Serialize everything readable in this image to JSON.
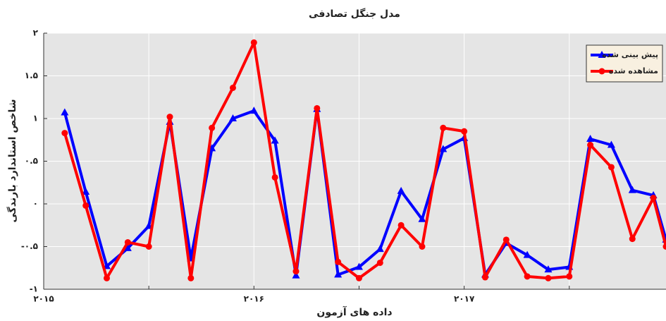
{
  "chart_data": {
    "type": "line",
    "title": "مدل جنگل تصادفی",
    "xlabel": "داده های آزمون",
    "ylabel": "شاخص استاندارد بارندگی",
    "x": [
      2015.1,
      2015.2,
      2015.3,
      2015.4,
      2015.5,
      2015.6,
      2015.7,
      2015.8,
      2015.9,
      2016.0,
      2016.1,
      2016.2,
      2016.3,
      2016.4,
      2016.5,
      2016.6,
      2016.7,
      2016.8,
      2016.9,
      2017.0,
      2017.1,
      2017.2,
      2017.3,
      2017.4,
      2017.5,
      2017.6,
      2017.7,
      2017.8,
      2017.9,
      2017.96
    ],
    "series": [
      {
        "name": "پیش بینی شده",
        "color": "#0000ff",
        "marker": "triangle",
        "values": [
          1.07,
          0.14,
          -0.73,
          -0.52,
          -0.26,
          0.96,
          -0.64,
          0.65,
          1.0,
          1.09,
          0.74,
          -0.84,
          1.11,
          -0.83,
          -0.74,
          -0.53,
          0.15,
          -0.18,
          0.64,
          0.77,
          -0.83,
          -0.46,
          -0.6,
          -0.77,
          -0.74,
          0.76,
          0.69,
          0.16,
          0.1,
          -0.42
        ]
      },
      {
        "name": "مشاهده شده",
        "color": "#ff0000",
        "marker": "circle",
        "values": [
          0.83,
          -0.02,
          -0.87,
          -0.45,
          -0.5,
          1.02,
          -0.87,
          0.89,
          1.36,
          1.89,
          0.31,
          -0.79,
          1.12,
          -0.68,
          -0.87,
          -0.69,
          -0.25,
          -0.5,
          0.89,
          0.85,
          -0.86,
          -0.42,
          -0.85,
          -0.87,
          -0.85,
          0.69,
          0.43,
          -0.41,
          0.07,
          -0.5
        ]
      }
    ],
    "xlim": [
      2015,
      2017.96
    ],
    "xticks": [
      {
        "value": 2015,
        "label": "۲۰۱۵"
      },
      {
        "value": 2015.5,
        "label": null
      },
      {
        "value": 2016,
        "label": "۲۰۱۶"
      },
      {
        "value": 2016.5,
        "label": null
      },
      {
        "value": 2017,
        "label": "۲۰۱۷"
      },
      {
        "value": 2017.5,
        "label": null
      }
    ],
    "ylim": [
      -1,
      2
    ],
    "yticks": [
      {
        "value": -1,
        "label": "-۱"
      },
      {
        "value": -0.5,
        "label": "-۰.۵"
      },
      {
        "value": 0,
        "label": "۰"
      },
      {
        "value": 0.5,
        "label": "۰.۵"
      },
      {
        "value": 1,
        "label": "۱"
      },
      {
        "value": 1.5,
        "label": "۱.۵"
      },
      {
        "value": 2,
        "label": "۲"
      }
    ],
    "grid": true,
    "legend": "top-right"
  }
}
